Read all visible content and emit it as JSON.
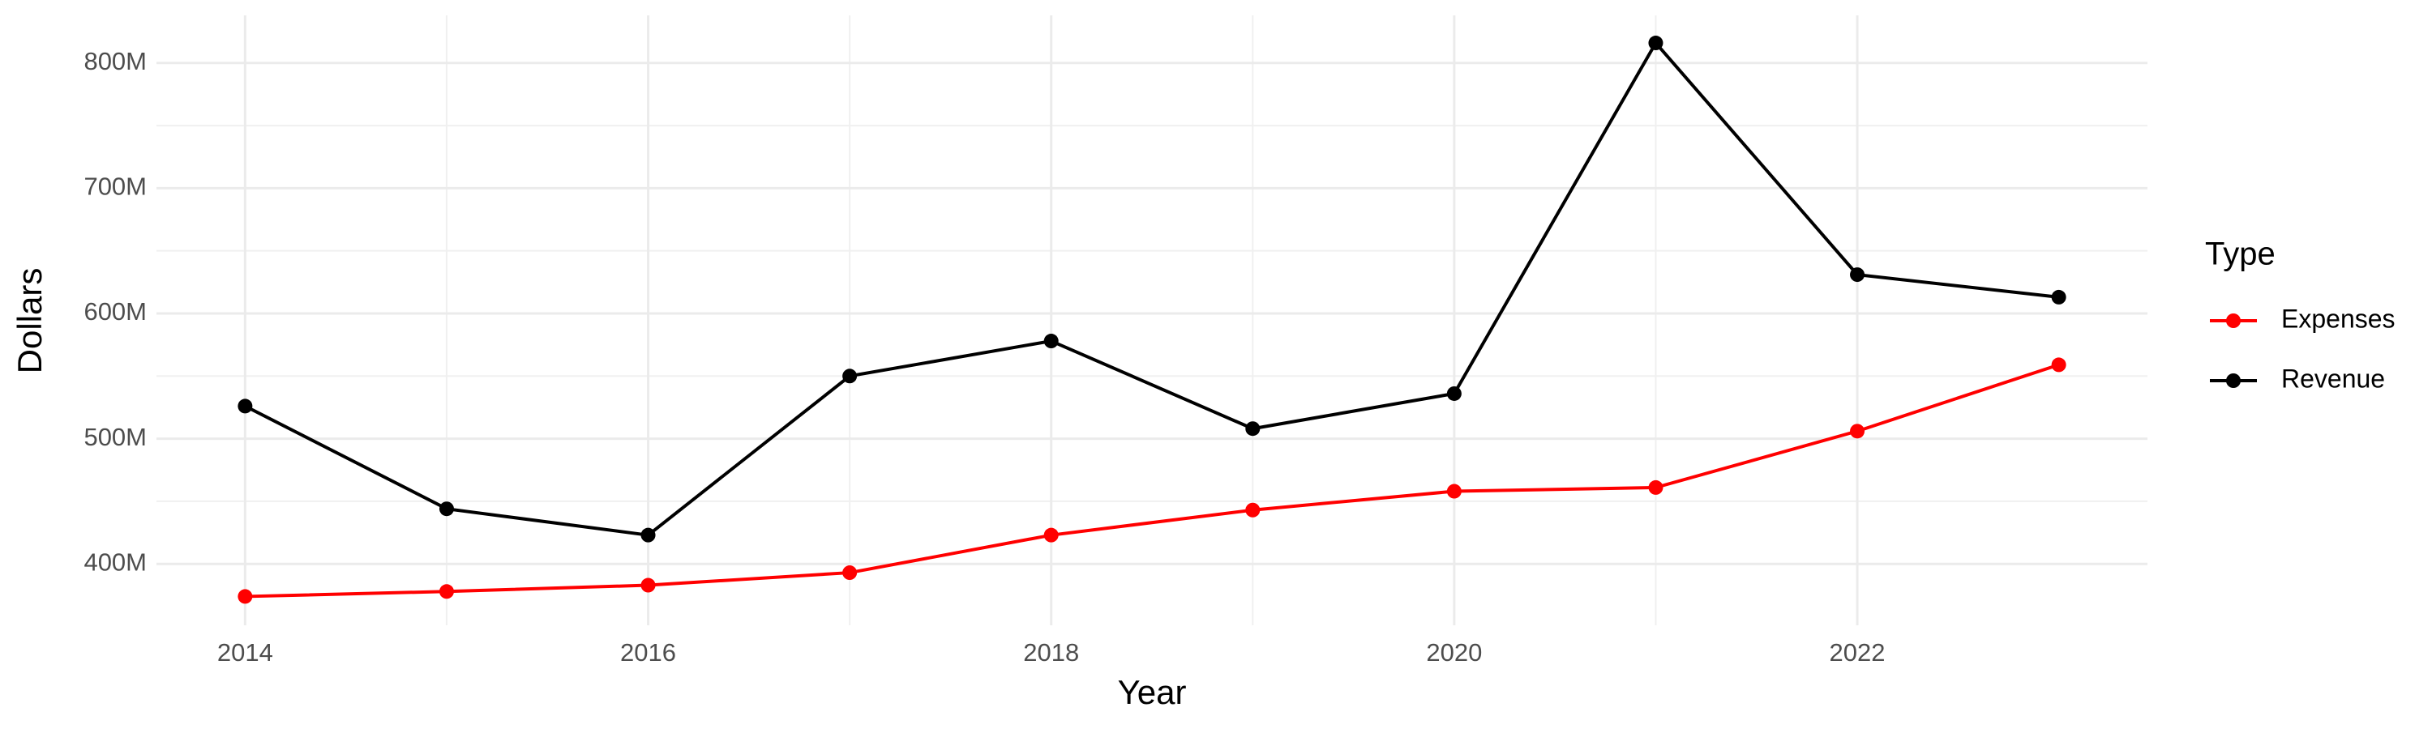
{
  "chart_data": {
    "type": "line",
    "x_label": "Year",
    "y_label": "Dollars",
    "legend_title": "Type",
    "legend_position": "right",
    "grid": true,
    "x": [
      2014,
      2015,
      2016,
      2017,
      2018,
      2019,
      2020,
      2021,
      2022,
      2023
    ],
    "series": [
      {
        "name": "Expenses",
        "color": "#ff0000",
        "values": [
          374000000,
          378000000,
          383000000,
          393000000,
          423000000,
          443000000,
          458000000,
          461000000,
          506000000,
          559000000
        ]
      },
      {
        "name": "Revenue",
        "color": "#000000",
        "values": [
          526000000,
          444000000,
          423000000,
          550000000,
          578000000,
          508000000,
          536000000,
          816000000,
          631000000,
          613000000
        ]
      }
    ],
    "xlim": [
      2013.56,
      2023.44
    ],
    "xticks": [
      2014,
      2016,
      2018,
      2020,
      2022
    ],
    "ylim": [
      351000000,
      838000000
    ],
    "yticks": [
      {
        "value": 400000000,
        "label": "400M"
      },
      {
        "value": 500000000,
        "label": "500M"
      },
      {
        "value": 600000000,
        "label": "600M"
      },
      {
        "value": 700000000,
        "label": "700M"
      },
      {
        "value": 800000000,
        "label": "800M"
      }
    ]
  }
}
